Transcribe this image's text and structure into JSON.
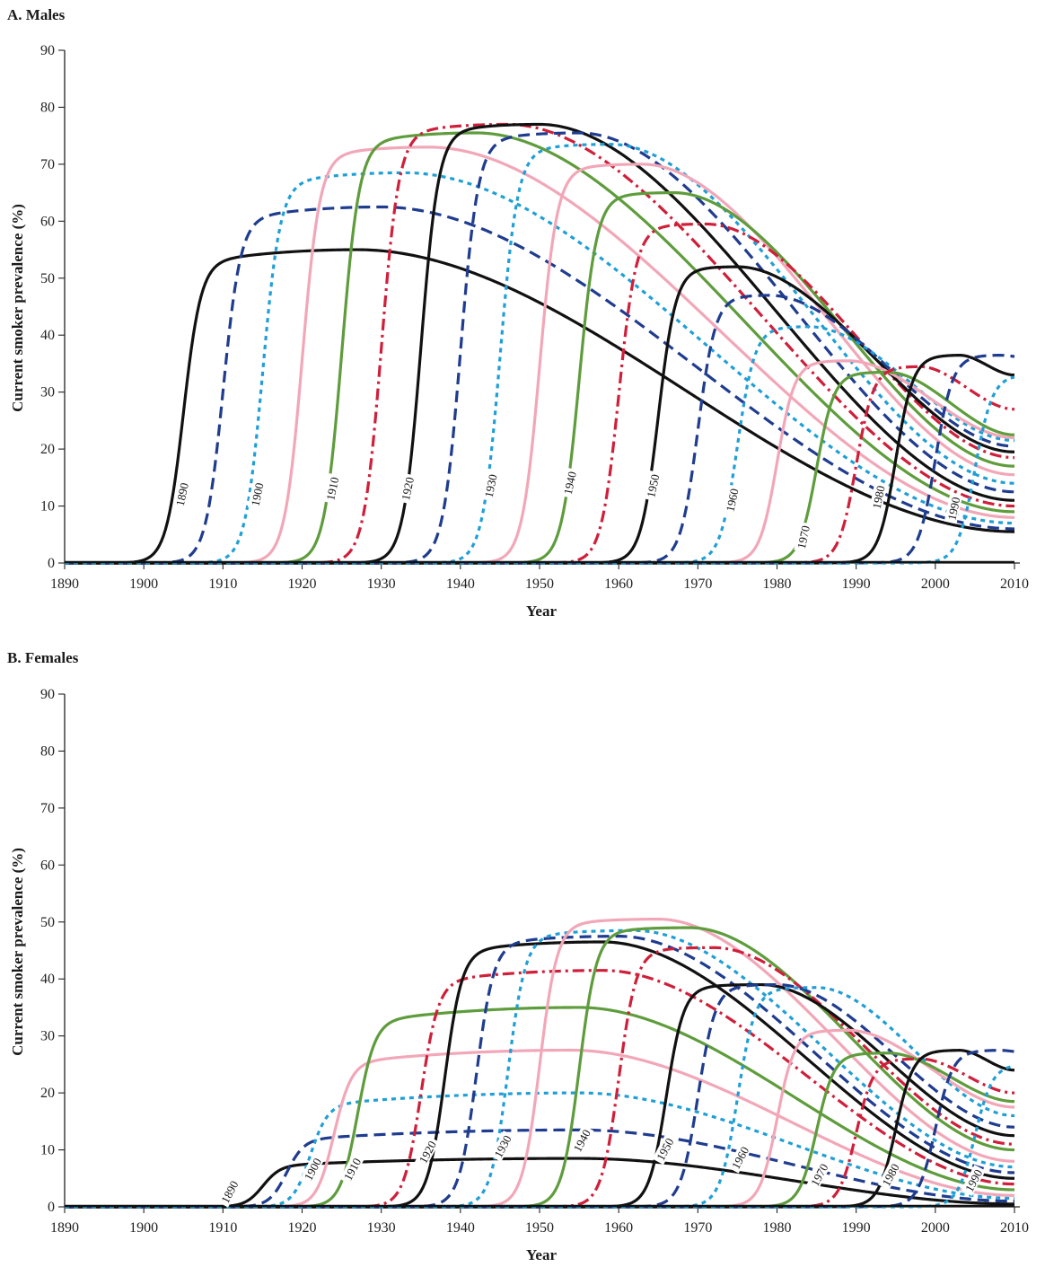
{
  "palette": {
    "black": "#111111",
    "navy": "#1f3c8f",
    "cyan": "#1f9fd6",
    "pink": "#f2a7b8",
    "green": "#5e9c3c",
    "red": "#cf1f3a",
    "orange": "#e8892a"
  },
  "style_cycle": [
    {
      "color": "black",
      "dash": "solid"
    },
    {
      "color": "navy",
      "dash": "dash"
    },
    {
      "color": "cyan",
      "dash": "dot"
    },
    {
      "color": "pink",
      "dash": "solid"
    },
    {
      "color": "green",
      "dash": "solid"
    },
    {
      "color": "red",
      "dash": "dashdot"
    }
  ],
  "chart_data": [
    {
      "type": "line",
      "title": "A. Males",
      "xlabel": "Year",
      "ylabel": "Current smoker prevalence (%)",
      "xlim": [
        1890,
        2010
      ],
      "ylim": [
        0,
        90
      ],
      "xticks": [
        1890,
        1900,
        1910,
        1920,
        1930,
        1940,
        1950,
        1960,
        1970,
        1980,
        1990,
        2000,
        2010
      ],
      "yticks": [
        0,
        10,
        20,
        30,
        40,
        50,
        60,
        70,
        80,
        90
      ],
      "grid": false,
      "legend": "none",
      "series": [
        {
          "cohort": 1890,
          "onset": 1905,
          "peak_year": 1927,
          "peak": 55,
          "end_value": 5.5
        },
        {
          "cohort": 1895,
          "onset": 1910,
          "peak_year": 1930,
          "peak": 62.5,
          "end_value": 6
        },
        {
          "cohort": 1900,
          "onset": 1915,
          "peak_year": 1933,
          "peak": 68.5,
          "end_value": 7
        },
        {
          "cohort": 1905,
          "onset": 1920,
          "peak_year": 1936,
          "peak": 73,
          "end_value": 8
        },
        {
          "cohort": 1910,
          "onset": 1925,
          "peak_year": 1942,
          "peak": 75.5,
          "end_value": 9
        },
        {
          "cohort": 1915,
          "onset": 1930,
          "peak_year": 1946,
          "peak": 77,
          "end_value": 10
        },
        {
          "cohort": 1920,
          "onset": 1935,
          "peak_year": 1950,
          "peak": 77,
          "end_value": 11
        },
        {
          "cohort": 1925,
          "onset": 1940,
          "peak_year": 1955,
          "peak": 75.5,
          "end_value": 12.5
        },
        {
          "cohort": 1930,
          "onset": 1945,
          "peak_year": 1959,
          "peak": 73.5,
          "end_value": 14
        },
        {
          "cohort": 1935,
          "onset": 1950,
          "peak_year": 1963,
          "peak": 70,
          "end_value": 15.5
        },
        {
          "cohort": 1940,
          "onset": 1955,
          "peak_year": 1967,
          "peak": 65,
          "end_value": 17
        },
        {
          "cohort": 1945,
          "onset": 1960,
          "peak_year": 1971,
          "peak": 59.5,
          "end_value": 18.5
        },
        {
          "cohort": 1950,
          "onset": 1965,
          "peak_year": 1975,
          "peak": 52,
          "end_value": 19.5
        },
        {
          "cohort": 1955,
          "onset": 1970,
          "peak_year": 1979,
          "peak": 47,
          "end_value": 20.5
        },
        {
          "cohort": 1960,
          "onset": 1975,
          "peak_year": 1984,
          "peak": 41.5,
          "end_value": 21.5
        },
        {
          "cohort": 1965,
          "onset": 1980,
          "peak_year": 1989,
          "peak": 35.5,
          "end_value": 22
        },
        {
          "cohort": 1970,
          "onset": 1985,
          "peak_year": 1994,
          "peak": 33.5,
          "end_value": 22.5
        },
        {
          "cohort": 1975,
          "onset": 1990,
          "peak_year": 1998,
          "peak": 34.5,
          "end_value": 27
        },
        {
          "cohort": 1980,
          "onset": 1995,
          "peak_year": 2003,
          "peak": 36.5,
          "end_value": 33
        },
        {
          "cohort": 1985,
          "onset": 2000,
          "peak_year": 2008,
          "peak": 36.5,
          "end_value": 36
        },
        {
          "cohort": 1990,
          "onset": 2005,
          "peak_year": 2012,
          "peak": 33,
          "end_value": 24
        }
      ],
      "cohort_labels": [
        {
          "text": "1890",
          "x": 1905,
          "y": 12
        },
        {
          "text": "1900",
          "x": 1914.5,
          "y": 12
        },
        {
          "text": "1910",
          "x": 1924,
          "y": 13
        },
        {
          "text": "1920",
          "x": 1933.5,
          "y": 13
        },
        {
          "text": "1930",
          "x": 1944,
          "y": 13.5
        },
        {
          "text": "1940",
          "x": 1954,
          "y": 14
        },
        {
          "text": "1950",
          "x": 1964.5,
          "y": 13.5
        },
        {
          "text": "1960",
          "x": 1974.5,
          "y": 11
        },
        {
          "text": "1970",
          "x": 1983.5,
          "y": 4.5
        },
        {
          "text": "1980",
          "x": 1993,
          "y": 11.5
        },
        {
          "text": "1990",
          "x": 2002.5,
          "y": 9.5
        }
      ]
    },
    {
      "type": "line",
      "title": "B. Females",
      "xlabel": "Year",
      "ylabel": "Current smoker prevalence (%)",
      "xlim": [
        1890,
        2010
      ],
      "ylim": [
        0,
        90
      ],
      "xticks": [
        1890,
        1900,
        1910,
        1920,
        1930,
        1940,
        1950,
        1960,
        1970,
        1980,
        1990,
        2000,
        2010
      ],
      "yticks": [
        0,
        10,
        20,
        30,
        40,
        50,
        60,
        70,
        80,
        90
      ],
      "grid": false,
      "legend": "none",
      "series": [
        {
          "cohort": 1890,
          "onset": 1915,
          "peak_year": 1955,
          "peak": 8.5,
          "end_value": 0.5
        },
        {
          "cohort": 1895,
          "onset": 1918,
          "peak_year": 1955,
          "peak": 13.5,
          "end_value": 1
        },
        {
          "cohort": 1900,
          "onset": 1921,
          "peak_year": 1955,
          "peak": 20,
          "end_value": 1.5
        },
        {
          "cohort": 1905,
          "onset": 1924,
          "peak_year": 1954,
          "peak": 27.5,
          "end_value": 2
        },
        {
          "cohort": 1910,
          "onset": 1927,
          "peak_year": 1955,
          "peak": 35,
          "end_value": 3
        },
        {
          "cohort": 1915,
          "onset": 1935,
          "peak_year": 1958,
          "peak": 41.5,
          "end_value": 4
        },
        {
          "cohort": 1920,
          "onset": 1938,
          "peak_year": 1958,
          "peak": 46.5,
          "end_value": 5
        },
        {
          "cohort": 1925,
          "onset": 1942,
          "peak_year": 1960,
          "peak": 47.5,
          "end_value": 6
        },
        {
          "cohort": 1930,
          "onset": 1946,
          "peak_year": 1962,
          "peak": 48.5,
          "end_value": 7
        },
        {
          "cohort": 1935,
          "onset": 1950,
          "peak_year": 1965,
          "peak": 50.5,
          "end_value": 8
        },
        {
          "cohort": 1940,
          "onset": 1955,
          "peak_year": 1969,
          "peak": 49,
          "end_value": 10
        },
        {
          "cohort": 1945,
          "onset": 1960,
          "peak_year": 1972,
          "peak": 45.5,
          "end_value": 11
        },
        {
          "cohort": 1950,
          "onset": 1966,
          "peak_year": 1978,
          "peak": 39,
          "end_value": 12.5
        },
        {
          "cohort": 1955,
          "onset": 1970,
          "peak_year": 1980,
          "peak": 39,
          "end_value": 14
        },
        {
          "cohort": 1960,
          "onset": 1975,
          "peak_year": 1985,
          "peak": 38.5,
          "end_value": 16
        },
        {
          "cohort": 1965,
          "onset": 1980,
          "peak_year": 1989,
          "peak": 31,
          "end_value": 17.5
        },
        {
          "cohort": 1970,
          "onset": 1985,
          "peak_year": 1994,
          "peak": 27,
          "end_value": 18.5
        },
        {
          "cohort": 1975,
          "onset": 1990,
          "peak_year": 1998,
          "peak": 26,
          "end_value": 20
        },
        {
          "cohort": 1980,
          "onset": 1995,
          "peak_year": 2003,
          "peak": 27.5,
          "end_value": 24
        },
        {
          "cohort": 1985,
          "onset": 2000,
          "peak_year": 2008,
          "peak": 27.5,
          "end_value": 27
        },
        {
          "cohort": 1990,
          "onset": 2005,
          "peak_year": 2012,
          "peak": 25,
          "end_value": 19
        }
      ],
      "cohort_labels": [
        {
          "text": "1890",
          "x": 1911,
          "y": 2.5
        },
        {
          "text": "1900",
          "x": 1921.5,
          "y": 6.5
        },
        {
          "text": "1910",
          "x": 1926.5,
          "y": 6.5
        },
        {
          "text": "1920",
          "x": 1936,
          "y": 9.5
        },
        {
          "text": "1930",
          "x": 1945.5,
          "y": 10.5
        },
        {
          "text": "1940",
          "x": 1955.5,
          "y": 11.5
        },
        {
          "text": "1950",
          "x": 1966,
          "y": 10
        },
        {
          "text": "1960",
          "x": 1975.5,
          "y": 8.5
        },
        {
          "text": "1970",
          "x": 1985.5,
          "y": 5.5
        },
        {
          "text": "1980",
          "x": 1994.5,
          "y": 5.5
        },
        {
          "text": "1990",
          "x": 2005,
          "y": 4.5
        }
      ]
    }
  ]
}
